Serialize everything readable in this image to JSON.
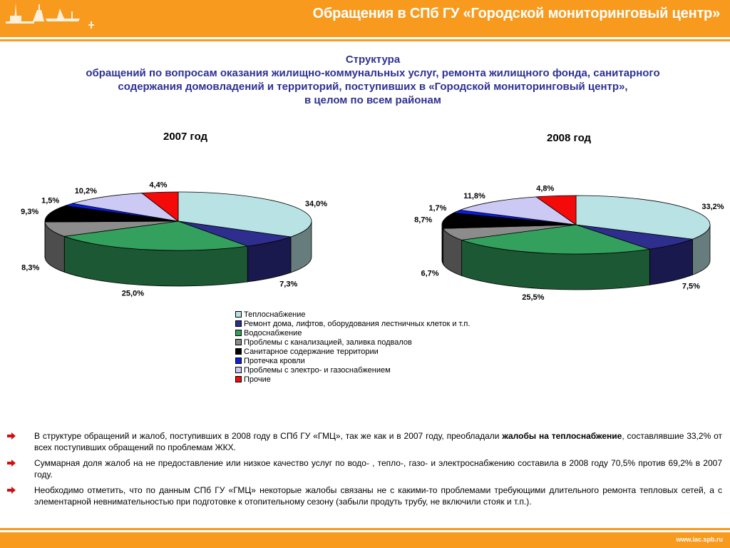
{
  "header": {
    "title": "Обращения в СПб ГУ «Городской мониторинговый центр»"
  },
  "heading": {
    "line1": "Структура",
    "line2": "обращений по вопросам оказания жилищно-коммунальных услуг, ремонта жилищного фонда, санитарного",
    "line3": "содержания домовладений и территорий, поступивших в «Городской мониторинговый центр»,",
    "line4": "в целом по всем районам"
  },
  "chart_data": [
    {
      "type": "pie",
      "title": "2007 год",
      "categories": [
        "Теплоснабжение",
        "Ремонт дома, лифтов, оборудования лестничных клеток и т.п.",
        "Водоснабжение",
        "Проблемы с канализацией, заливка подвалов",
        "Санитарное содержание территории",
        "Протечка кровли",
        "Проблемы   с электро- и газоснабжением",
        "Прочие"
      ],
      "values": [
        34.0,
        7.3,
        25.0,
        8.3,
        9.3,
        1.5,
        10.2,
        4.4
      ],
      "labels": [
        "34,0%",
        "7,3%",
        "25,0%",
        "8,3%",
        "9,3%",
        "1,5%",
        "10,2%",
        "4,4%"
      ],
      "legend": "bottom"
    },
    {
      "type": "pie",
      "title": "2008 год",
      "categories": [
        "Теплоснабжение",
        "Ремонт дома, лифтов, оборудования лестничных клеток и т.п.",
        "Водоснабжение",
        "Проблемы с канализацией, заливка подвалов",
        "Санитарное содержание территории",
        "Протечка кровли",
        "Проблемы   с электро- и газоснабжением",
        "Прочие"
      ],
      "values": [
        33.2,
        7.5,
        25.5,
        6.7,
        8.7,
        1.7,
        11.8,
        4.8
      ],
      "labels": [
        "33,2%",
        "7,5%",
        "25,5%",
        "6,7%",
        "8,7%",
        "1,7%",
        "11,8%",
        "4,8%"
      ],
      "legend": "bottom"
    }
  ],
  "colors": [
    "#b9e2e4",
    "#2e2e8e",
    "#34a05e",
    "#8c8c8c",
    "#000000",
    "#0a1ee6",
    "#cccaf4",
    "#f50a0a"
  ],
  "legend_items": [
    "Теплоснабжение",
    "Ремонт дома, лифтов, оборудования лестничных клеток и т.п.",
    "Водоснабжение",
    "Проблемы с канализацией, заливка подвалов",
    "Санитарное содержание территории",
    "Протечка кровли",
    "Проблемы   с электро- и газоснабжением",
    "Прочие"
  ],
  "bullets": [
    {
      "pre": "В структуре обращений и жалоб, поступивших в 2008 году в СПб ГУ «ГМЦ», так же как и в 2007 году, преобладали ",
      "bold": "жалобы на теплоснабжение",
      "post": ", составлявшие 33,2% от всех поступивших обращений по проблемам ЖКХ."
    },
    {
      "pre": "Суммарная доля жалоб на не предоставление или низкое качество  услуг по водо- , тепло-, газо- и электроснабжению составила в 2008 году 70,5% против 69,2% в 2007 году.",
      "bold": "",
      "post": ""
    },
    {
      "pre": "Необходимо отметить, что по данным СПб ГУ «ГМЦ» некоторые жалобы связаны не с какими-то проблемами требующими длительного ремонта тепловых сетей, а с элементарной невнимательностью при подготовке к отопительному сезону (забыли продуть трубу, не включили стояк и т.п.).",
      "bold": "",
      "post": ""
    }
  ],
  "footer": {
    "url": "www.iac.spb.ru"
  }
}
